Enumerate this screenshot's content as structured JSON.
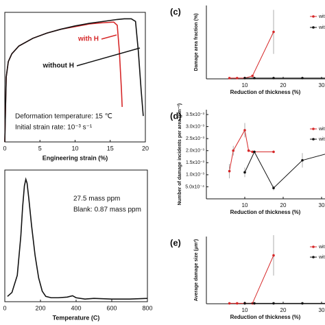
{
  "chart_data": [
    {
      "type": "line",
      "xlabel": "Engineering strain (%)",
      "xlim": [
        0,
        20
      ],
      "xticks": [
        0,
        5,
        10,
        15,
        20
      ],
      "ylim": [
        0,
        1
      ],
      "series": [
        {
          "name": "with H",
          "color": "#d62728",
          "x": [
            0,
            0.2,
            0.5,
            1,
            2,
            4,
            6,
            8,
            10,
            12,
            14,
            15.5,
            16,
            16.3,
            16.6,
            16.7
          ],
          "values": [
            0,
            0.5,
            0.62,
            0.68,
            0.74,
            0.8,
            0.84,
            0.87,
            0.89,
            0.91,
            0.92,
            0.925,
            0.9,
            0.7,
            0.4,
            0.27
          ]
        },
        {
          "name": "without H",
          "color": "#111111",
          "x": [
            0,
            0.2,
            0.5,
            1,
            2,
            4,
            6,
            8,
            10,
            12,
            14,
            16,
            17,
            18,
            18.6,
            19,
            19.4,
            19.7
          ],
          "values": [
            0,
            0.5,
            0.62,
            0.68,
            0.74,
            0.8,
            0.84,
            0.87,
            0.895,
            0.915,
            0.93,
            0.945,
            0.95,
            0.95,
            0.93,
            0.7,
            0.4,
            0.2
          ]
        }
      ],
      "annotations": [
        "Deformation temperature: 15 ℃",
        "Initial strain rate: 10⁻³ s⁻¹"
      ]
    },
    {
      "type": "line",
      "xlabel": "Temperature (C)",
      "xlim": [
        0,
        800
      ],
      "xticks": [
        0,
        200,
        400,
        600,
        800
      ],
      "ylim": [
        0,
        1
      ],
      "series": [
        {
          "color": "#111111",
          "x": [
            15,
            40,
            70,
            90,
            100,
            110,
            118,
            125,
            135,
            150,
            170,
            190,
            210,
            230,
            260,
            300,
            350,
            380,
            400,
            450,
            500,
            600,
            700,
            800
          ],
          "values": [
            0.04,
            0.07,
            0.2,
            0.5,
            0.72,
            0.88,
            0.93,
            0.9,
            0.78,
            0.58,
            0.35,
            0.18,
            0.08,
            0.04,
            0.03,
            0.03,
            0.035,
            0.045,
            0.03,
            0.02,
            0.025,
            0.02,
            0.02,
            0.025
          ]
        }
      ],
      "annotations": [
        "27.5 mass ppm",
        "Blank: 0.87 mass ppm"
      ]
    },
    {
      "type": "line",
      "panel_label": "(c)",
      "xlabel": "Reduction of thickness (%)",
      "ylabel": "Damage area fraction (%)",
      "xlim": [
        0,
        35
      ],
      "xticks": [
        10,
        20,
        30
      ],
      "ylim": [
        0,
        5
      ],
      "series": [
        {
          "name": "with H",
          "color": "#d62728",
          "x": [
            6,
            8,
            10,
            12,
            17.5
          ],
          "values": [
            0.05,
            0.05,
            0.05,
            0.2,
            3.2
          ],
          "errors": [
            null,
            null,
            null,
            null,
            1.5
          ]
        },
        {
          "name": "without H",
          "color": "#111111",
          "x": [
            10,
            12.5,
            17.5,
            25,
            32
          ],
          "values": [
            0.05,
            0.05,
            0.05,
            0.05,
            0.05
          ],
          "errors": [
            null,
            null,
            null,
            null,
            null
          ]
        }
      ]
    },
    {
      "type": "line",
      "panel_label": "(d)",
      "xlabel": "Reduction of thickness (%)",
      "ylabel": "Number of damage incidents per area (μm⁻²)",
      "xlim": [
        0,
        35
      ],
      "xticks": [
        10,
        20,
        30
      ],
      "ylim": [
        0,
        0.0037
      ],
      "yticks": [
        {
          "value": 0.0005,
          "label": "5.0x10⁻⁴"
        },
        {
          "value": 0.001,
          "label": "1.0x10⁻³"
        },
        {
          "value": 0.0015,
          "label": "1.5x10⁻³"
        },
        {
          "value": 0.002,
          "label": "2.0x10⁻³"
        },
        {
          "value": 0.0025,
          "label": "2.5x10⁻³"
        },
        {
          "value": 0.003,
          "label": "3.0x10⁻³"
        },
        {
          "value": 0.0035,
          "label": "3.5x10⁻³"
        }
      ],
      "series": [
        {
          "name": "with H",
          "color": "#d62728",
          "x": [
            6,
            7,
            10,
            11,
            12,
            17.5
          ],
          "values": [
            0.00115,
            0.002,
            0.00285,
            0.002,
            0.00195,
            0.00195
          ],
          "errors": [
            0.0003,
            0.0002,
            0.0003,
            null,
            null,
            null
          ]
        },
        {
          "name": "without H",
          "color": "#111111",
          "x": [
            10,
            12.5,
            17.5,
            25,
            32
          ],
          "values": [
            0.0011,
            0.00195,
            0.00045,
            0.0016,
            0.0019
          ],
          "errors": [
            0.0002,
            null,
            0.0001,
            0.0003,
            null
          ]
        }
      ]
    },
    {
      "type": "line",
      "panel_label": "(e)",
      "xlabel": "Reduction of thickness (%)",
      "ylabel": "Average damage size (μm²)",
      "xlim": [
        0,
        35
      ],
      "xticks": [
        10,
        20,
        30
      ],
      "ylim": [
        0,
        50
      ],
      "series": [
        {
          "name": "with H",
          "color": "#d62728",
          "x": [
            6,
            8,
            10,
            12,
            17.5
          ],
          "values": [
            0.3,
            0.3,
            0.3,
            0.3,
            36
          ],
          "errors": [
            null,
            null,
            null,
            null,
            15
          ]
        },
        {
          "name": "without H",
          "color": "#111111",
          "x": [
            10,
            12.5,
            17.5,
            25,
            32
          ],
          "values": [
            0.3,
            0.3,
            0.3,
            0.3,
            0.3
          ],
          "errors": [
            null,
            null,
            null,
            null,
            null
          ]
        }
      ]
    }
  ]
}
